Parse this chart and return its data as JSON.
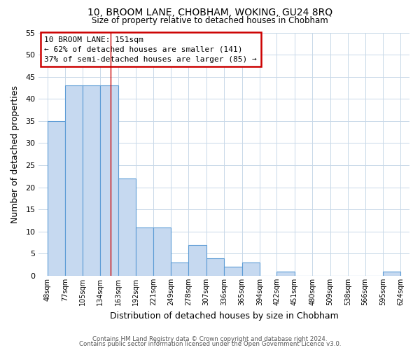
{
  "title": "10, BROOM LANE, CHOBHAM, WOKING, GU24 8RQ",
  "subtitle": "Size of property relative to detached houses in Chobham",
  "xlabel": "Distribution of detached houses by size in Chobham",
  "ylabel": "Number of detached properties",
  "bar_edges": [
    48,
    77,
    105,
    134,
    163,
    192,
    221,
    249,
    278,
    307,
    336,
    365,
    394,
    422,
    451,
    480,
    509,
    538,
    566,
    595,
    624
  ],
  "bar_heights": [
    35,
    43,
    43,
    43,
    22,
    11,
    11,
    3,
    7,
    4,
    2,
    3,
    0,
    1,
    0,
    0,
    0,
    0,
    0,
    1
  ],
  "bar_color": "#c6d9f0",
  "bar_edge_color": "#5b9bd5",
  "annotation_box_edge": "#cc0000",
  "property_line_color": "#cc0000",
  "annotation_lines": [
    "10 BROOM LANE: 151sqm",
    "← 62% of detached houses are smaller (141)",
    "37% of semi-detached houses are larger (85) →"
  ],
  "property_size": 151,
  "ylim": [
    0,
    55
  ],
  "yticks": [
    0,
    5,
    10,
    15,
    20,
    25,
    30,
    35,
    40,
    45,
    50,
    55
  ],
  "tick_label_suffix": "sqm",
  "footer_line1": "Contains HM Land Registry data © Crown copyright and database right 2024.",
  "footer_line2": "Contains public sector information licensed under the Open Government Licence v3.0.",
  "background_color": "#ffffff",
  "grid_color": "#c8d8e8"
}
